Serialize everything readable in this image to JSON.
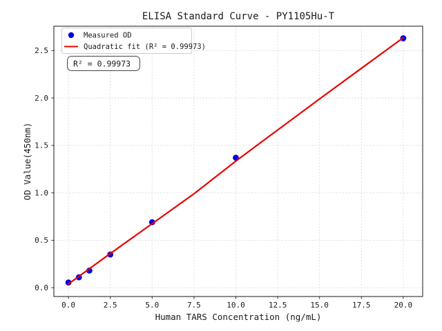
{
  "figure": {
    "background": "#ffffff"
  },
  "chart_data": {
    "type": "scatter",
    "title": "ELISA Standard Curve - PY1105Hu-T",
    "xlabel": "Human TARS Concentration (ng/mL)",
    "ylabel": "OD Value(450nm)",
    "xlim": [
      -0.87,
      21.16
    ],
    "ylim": [
      -0.093,
      2.757
    ],
    "x_ticks": [
      0,
      2.5,
      5,
      7.5,
      10,
      12.5,
      15,
      17.5,
      20
    ],
    "x_tick_labels": [
      "0.0",
      "2.5",
      "5.0",
      "7.5",
      "10.0",
      "12.5",
      "15.0",
      "17.5",
      "20.0"
    ],
    "y_ticks": [
      0,
      0.5,
      1,
      1.5,
      2,
      2.5
    ],
    "y_tick_labels": [
      "0.0",
      "0.5",
      "1.0",
      "1.5",
      "2.0",
      "2.5"
    ],
    "grid": true,
    "grid_style": "dashed",
    "legend_position": "upper left",
    "annotation": "R² = 0.99973",
    "r_squared": 0.99973,
    "series": [
      {
        "name": "Measured OD",
        "type": "scatter",
        "marker": "circle",
        "color": "#0000e6",
        "x": [
          0,
          0.625,
          1.25,
          2.5,
          5,
          10,
          20
        ],
        "y": [
          0.055,
          0.11,
          0.18,
          0.35,
          0.69,
          1.37,
          2.63
        ]
      },
      {
        "name": "Quadratic fit (R² = 0.99973)",
        "type": "line",
        "color": "#e60000",
        "x": [
          0,
          2.5,
          5,
          7.5,
          10,
          12.5,
          15,
          17.5,
          20
        ],
        "y": [
          0.04,
          0.36,
          0.675,
          0.99,
          1.335,
          1.663,
          1.99,
          2.313,
          2.635
        ]
      }
    ],
    "colors": {
      "measured": "#0000e6",
      "fit": "#e60000",
      "grid": "#d9d9d9",
      "axis_frame": "#2b2b2b",
      "text": "#1a1a1a",
      "legend_border": "#cccccc",
      "annotation_border": "#444444"
    }
  }
}
